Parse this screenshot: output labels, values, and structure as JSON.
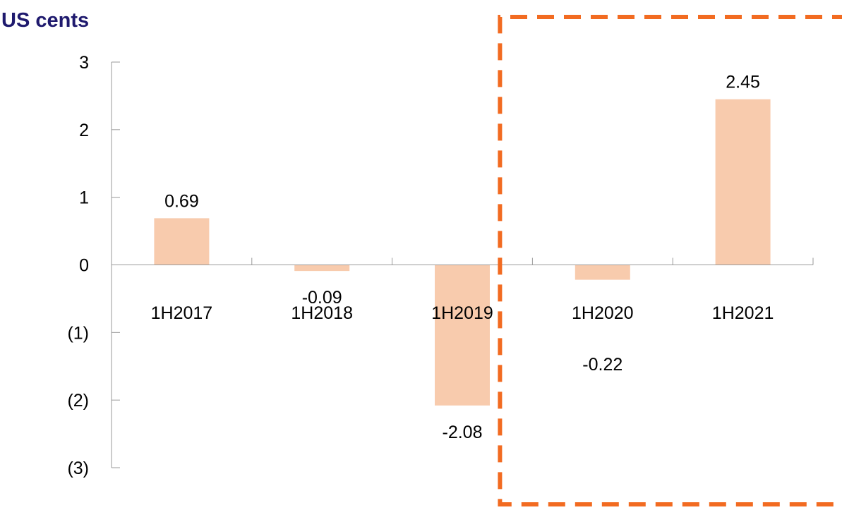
{
  "chart_data": {
    "type": "bar",
    "ylabel": "US cents",
    "categories": [
      "1H2017",
      "1H2018",
      "1H2019",
      "1H2020",
      "1H2021"
    ],
    "values": [
      0.69,
      -0.09,
      -2.08,
      -0.22,
      2.45
    ],
    "data_labels": [
      "0.69",
      "-0.09",
      "-2.08",
      "-0.22",
      "2.45"
    ],
    "ylim": [
      -3,
      3
    ],
    "y_ticks": [
      3,
      2,
      1,
      0,
      -1,
      -2,
      -3
    ],
    "y_tick_labels": [
      "3",
      "2",
      "1",
      "0",
      "(1)",
      "(2)",
      "(3)"
    ],
    "grid": false,
    "legend": "none",
    "highlight": {
      "categories": [
        "1H2020",
        "1H2021"
      ],
      "style": "dashed-box",
      "color": "#f26b21"
    },
    "colors": {
      "bar": "#f8cbad",
      "title": "#1f1a6e",
      "axis": "#9a9a9a"
    }
  }
}
